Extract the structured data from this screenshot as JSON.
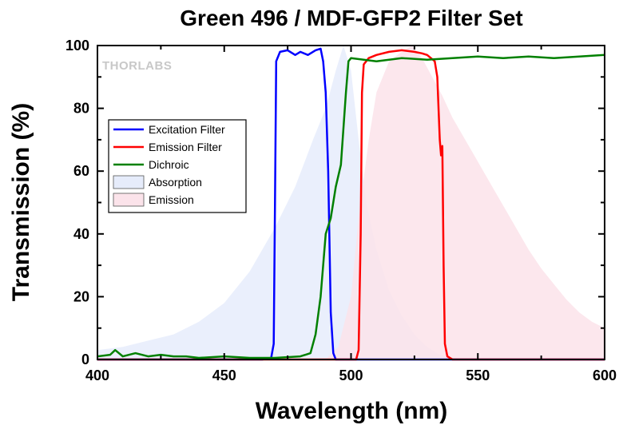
{
  "chart_data": {
    "type": "line",
    "title": "Green 496 / MDF-GFP2 Filter Set",
    "xlabel": "Wavelength (nm)",
    "ylabel": "Transmission (%)",
    "xlim": [
      400,
      600
    ],
    "ylim": [
      0,
      100
    ],
    "xticks": [
      "400",
      "450",
      "500",
      "550",
      "600"
    ],
    "yticks": [
      "0",
      "20",
      "40",
      "60",
      "80",
      "100"
    ],
    "watermark": "THORLABS",
    "legend_position": "upper-left",
    "series": [
      {
        "name": "Excitation Filter",
        "style": "line",
        "color": "#0000ff",
        "points": [
          [
            400,
            0
          ],
          [
            465,
            0
          ],
          [
            468.5,
            0.5
          ],
          [
            469.5,
            5
          ],
          [
            470,
            50
          ],
          [
            470.5,
            95
          ],
          [
            472,
            98
          ],
          [
            475,
            98.5
          ],
          [
            478,
            97
          ],
          [
            480,
            98
          ],
          [
            483,
            97
          ],
          [
            486,
            98.5
          ],
          [
            488,
            99
          ],
          [
            489,
            95
          ],
          [
            490,
            85
          ],
          [
            491,
            60
          ],
          [
            492,
            15
          ],
          [
            493,
            2
          ],
          [
            494,
            0
          ],
          [
            600,
            0
          ]
        ]
      },
      {
        "name": "Emission Filter",
        "style": "line",
        "color": "#ff0000",
        "points": [
          [
            400,
            0
          ],
          [
            502,
            0
          ],
          [
            503,
            3
          ],
          [
            503.8,
            40
          ],
          [
            504.3,
            85
          ],
          [
            505,
            94
          ],
          [
            507,
            96
          ],
          [
            510,
            97
          ],
          [
            515,
            98
          ],
          [
            520,
            98.5
          ],
          [
            525,
            98
          ],
          [
            528,
            97.5
          ],
          [
            530,
            97
          ],
          [
            533,
            95
          ],
          [
            534,
            90
          ],
          [
            535,
            70
          ],
          [
            535.5,
            65
          ],
          [
            536,
            68
          ],
          [
            536.5,
            30
          ],
          [
            537,
            5
          ],
          [
            538,
            1
          ],
          [
            540,
            0
          ],
          [
            600,
            0
          ]
        ]
      },
      {
        "name": "Dichroic",
        "style": "line",
        "color": "#008000",
        "points": [
          [
            400,
            1
          ],
          [
            405,
            1.5
          ],
          [
            407,
            3
          ],
          [
            410,
            1
          ],
          [
            415,
            2
          ],
          [
            420,
            1
          ],
          [
            425,
            1.5
          ],
          [
            430,
            1
          ],
          [
            435,
            1
          ],
          [
            440,
            0.5
          ],
          [
            450,
            1
          ],
          [
            460,
            0.5
          ],
          [
            470,
            0.5
          ],
          [
            480,
            1
          ],
          [
            484,
            2
          ],
          [
            486,
            8
          ],
          [
            488,
            20
          ],
          [
            489,
            30
          ],
          [
            490,
            40
          ],
          [
            492,
            45
          ],
          [
            494,
            55
          ],
          [
            496,
            62
          ],
          [
            498,
            85
          ],
          [
            499,
            95
          ],
          [
            500,
            96
          ],
          [
            510,
            95
          ],
          [
            520,
            96
          ],
          [
            530,
            95.5
          ],
          [
            540,
            96
          ],
          [
            550,
            96.5
          ],
          [
            560,
            96
          ],
          [
            570,
            96.5
          ],
          [
            580,
            96
          ],
          [
            590,
            96.5
          ],
          [
            600,
            97
          ]
        ]
      },
      {
        "name": "Absorption",
        "style": "area",
        "color": "#e6ecfb",
        "points": [
          [
            400,
            3
          ],
          [
            410,
            4
          ],
          [
            420,
            6
          ],
          [
            430,
            8
          ],
          [
            440,
            12
          ],
          [
            450,
            18
          ],
          [
            460,
            28
          ],
          [
            470,
            42
          ],
          [
            478,
            55
          ],
          [
            485,
            70
          ],
          [
            490,
            80
          ],
          [
            494,
            92
          ],
          [
            497,
            100
          ],
          [
            500,
            92
          ],
          [
            503,
            70
          ],
          [
            506,
            50
          ],
          [
            510,
            35
          ],
          [
            515,
            22
          ],
          [
            520,
            14
          ],
          [
            525,
            8
          ],
          [
            530,
            4
          ],
          [
            535,
            1.5
          ],
          [
            540,
            0.5
          ],
          [
            545,
            0
          ]
        ]
      },
      {
        "name": "Emission",
        "style": "area",
        "color": "#fbe3ea",
        "points": [
          [
            490,
            0
          ],
          [
            495,
            4
          ],
          [
            500,
            20
          ],
          [
            503,
            45
          ],
          [
            507,
            70
          ],
          [
            510,
            85
          ],
          [
            515,
            95
          ],
          [
            520,
            98
          ],
          [
            524,
            100
          ],
          [
            528,
            96
          ],
          [
            532,
            90
          ],
          [
            536,
            84
          ],
          [
            540,
            77
          ],
          [
            545,
            70
          ],
          [
            550,
            63
          ],
          [
            555,
            56
          ],
          [
            560,
            49
          ],
          [
            565,
            42
          ],
          [
            570,
            35
          ],
          [
            575,
            29
          ],
          [
            580,
            24
          ],
          [
            585,
            19
          ],
          [
            590,
            15
          ],
          [
            595,
            12
          ],
          [
            600,
            10
          ]
        ]
      }
    ]
  }
}
